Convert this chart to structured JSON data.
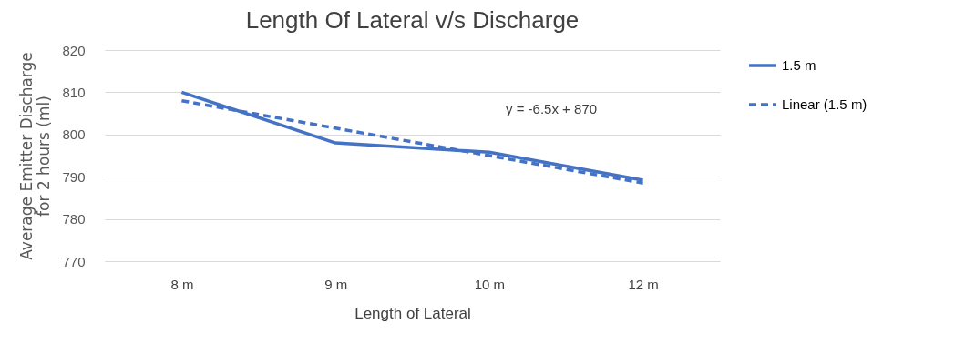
{
  "chart_data": {
    "type": "line",
    "title": "Length Of Lateral v/s Discharge",
    "xlabel": "Length of Lateral",
    "ylabel": "Average Emitter Discharge\nfor 2 hours (ml)",
    "categories": [
      "8 m",
      "9 m",
      "10 m",
      "12 m"
    ],
    "series": [
      {
        "name": "1.5 m",
        "color": "#4472c4",
        "values": [
          810,
          798,
          795.8,
          789.2
        ],
        "line_style": "solid"
      },
      {
        "name": "Linear (1.5 m)",
        "color": "#4472c4",
        "values": [
          808,
          801.5,
          795,
          788.5
        ],
        "line_style": "dashed"
      }
    ],
    "annotations": [
      "y = -6.5x + 870"
    ],
    "ylim": [
      770,
      820
    ],
    "yticks": [
      770,
      780,
      790,
      800,
      810,
      820
    ],
    "grid": "y",
    "legend": "right",
    "marker": "none"
  }
}
